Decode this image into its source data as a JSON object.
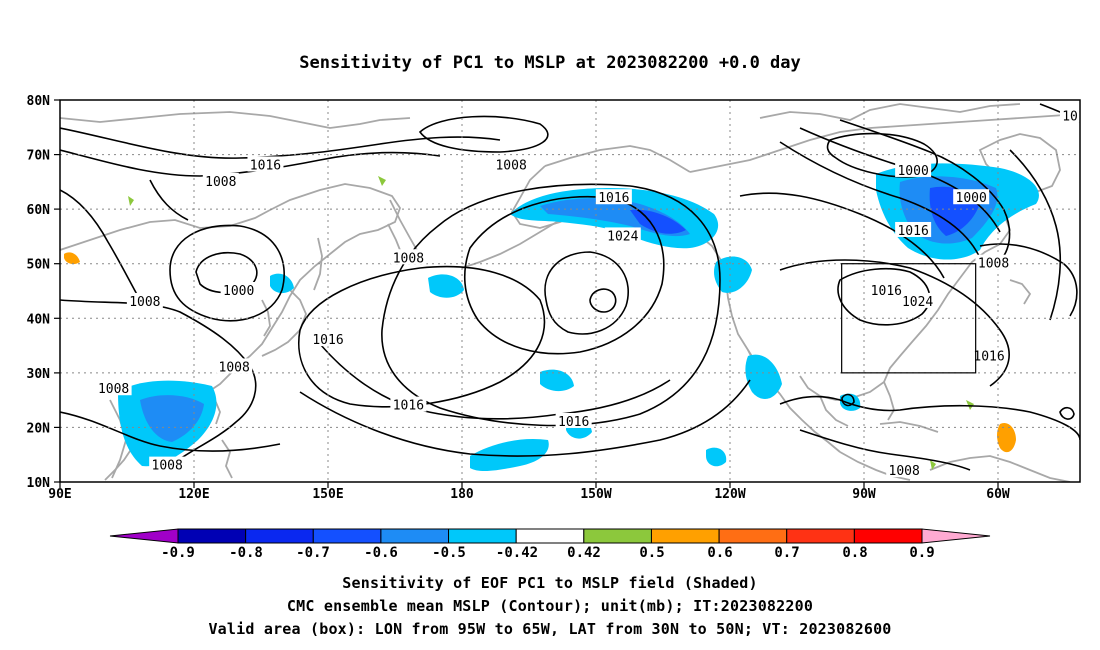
{
  "title": "Sensitivity of PC1 to MSLP at 2023082200 +0.0 day",
  "map": {
    "lat_ticks": [
      "80N",
      "70N",
      "60N",
      "50N",
      "40N",
      "30N",
      "20N",
      "10N"
    ],
    "lon_ticks": [
      "90E",
      "120E",
      "150E",
      "180",
      "150W",
      "120W",
      "90W",
      "60W"
    ],
    "grid": true,
    "contour_labels": [
      {
        "text": "1016",
        "lon": 136,
        "lat": 68
      },
      {
        "text": "1008",
        "lon": 191,
        "lat": 68
      },
      {
        "text": "1008",
        "lon": 126,
        "lat": 65
      },
      {
        "text": "1016",
        "lon": 214,
        "lat": 62
      },
      {
        "text": "1024",
        "lon": 216,
        "lat": 55
      },
      {
        "text": "1000",
        "lon": 281,
        "lat": 67
      },
      {
        "text": "1000",
        "lon": 294,
        "lat": 62
      },
      {
        "text": "1016",
        "lon": 281,
        "lat": 56
      },
      {
        "text": "1008",
        "lon": 299,
        "lat": 50
      },
      {
        "text": "1008",
        "lon": 168,
        "lat": 51
      },
      {
        "text": "1000",
        "lon": 130,
        "lat": 45
      },
      {
        "text": "1008",
        "lon": 109,
        "lat": 43
      },
      {
        "text": "1016",
        "lon": 150,
        "lat": 36
      },
      {
        "text": "1008",
        "lon": 129,
        "lat": 31
      },
      {
        "text": "1008",
        "lon": 102,
        "lat": 27
      },
      {
        "text": "1016",
        "lon": 168,
        "lat": 24
      },
      {
        "text": "1024",
        "lon": 282,
        "lat": 43
      },
      {
        "text": "1016",
        "lon": 275,
        "lat": 45
      },
      {
        "text": "1016",
        "lon": 298,
        "lat": 33
      },
      {
        "text": "1016",
        "lon": 205,
        "lat": 21
      },
      {
        "text": "1008",
        "lon": 114,
        "lat": 13
      },
      {
        "text": "1008",
        "lon": 279,
        "lat": 12
      },
      {
        "text": "101",
        "lon": 317,
        "lat": 77
      }
    ],
    "valid_box": {
      "lon_min": 265,
      "lon_max": 295,
      "lat_min": 30,
      "lat_max": 50
    }
  },
  "colorbar": {
    "labels": [
      "-0.9",
      "-0.8",
      "-0.7",
      "-0.6",
      "-0.5",
      "-0.42",
      "0.42",
      "0.5",
      "0.6",
      "0.7",
      "0.8",
      "0.9"
    ],
    "colors": [
      "#a000c8",
      "#0000b4",
      "#0a28f0",
      "#1450ff",
      "#1e8cf5",
      "#00c8fa",
      "#ffffff",
      "#8cc83c",
      "#ffa000",
      "#ff6e14",
      "#ff3214",
      "#ff0000",
      "#ffaad2"
    ]
  },
  "captions": {
    "line1": "Sensitivity of EOF PC1 to MSLP field (Shaded)",
    "line2": "CMC ensemble mean MSLP (Contour); unit(mb); IT:2023082200",
    "line3": "Valid area (box): LON from 95W to 65W, LAT from 30N to 50N; VT: 2023082600"
  }
}
